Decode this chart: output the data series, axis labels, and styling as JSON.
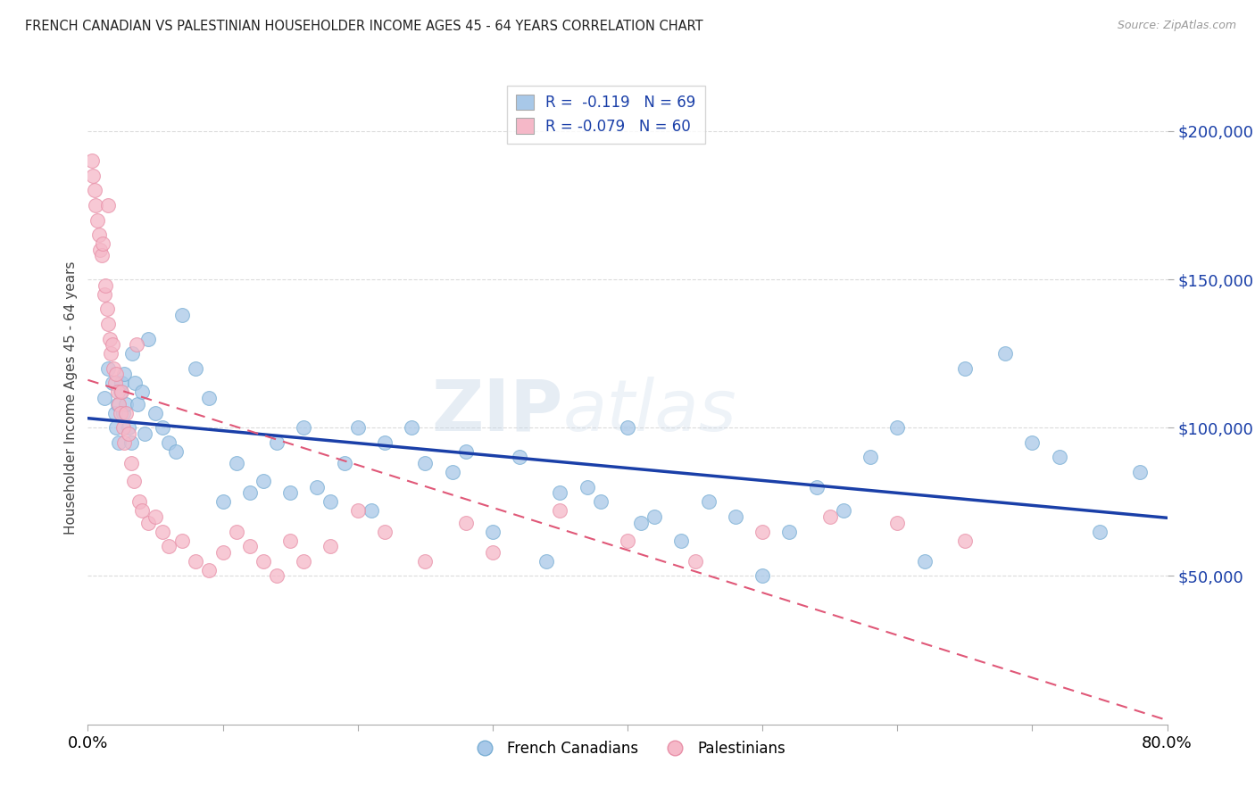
{
  "title": "FRENCH CANADIAN VS PALESTINIAN HOUSEHOLDER INCOME AGES 45 - 64 YEARS CORRELATION CHART",
  "source": "Source: ZipAtlas.com",
  "ylabel": "Householder Income Ages 45 - 64 years",
  "y_tick_labels": [
    "$50,000",
    "$100,000",
    "$150,000",
    "$200,000"
  ],
  "y_tick_values": [
    50000,
    100000,
    150000,
    200000
  ],
  "legend_label1": "French Canadians",
  "legend_label2": "Palestinians",
  "R1": -0.119,
  "N1": 69,
  "R2": -0.079,
  "N2": 60,
  "blue_color": "#a8c8e8",
  "blue_edge_color": "#7aafd4",
  "blue_line_color": "#1a3fa8",
  "pink_color": "#f5b8c8",
  "pink_edge_color": "#e890a8",
  "pink_line_color": "#e05878",
  "background_color": "#ffffff",
  "grid_color": "#d8d8d8",
  "xmin": 0.0,
  "xmax": 80.0,
  "ymin": 0,
  "ymax": 220000,
  "french_canadian_x": [
    1.2,
    1.5,
    1.8,
    2.0,
    2.1,
    2.2,
    2.3,
    2.4,
    2.5,
    2.6,
    2.7,
    2.8,
    3.0,
    3.2,
    3.3,
    3.5,
    3.7,
    4.0,
    4.2,
    4.5,
    5.0,
    5.5,
    6.0,
    6.5,
    7.0,
    8.0,
    9.0,
    10.0,
    11.0,
    12.0,
    13.0,
    14.0,
    15.0,
    16.0,
    17.0,
    18.0,
    19.0,
    20.0,
    21.0,
    22.0,
    24.0,
    25.0,
    27.0,
    28.0,
    30.0,
    32.0,
    34.0,
    35.0,
    37.0,
    38.0,
    40.0,
    41.0,
    42.0,
    44.0,
    46.0,
    48.0,
    50.0,
    52.0,
    54.0,
    56.0,
    58.0,
    60.0,
    62.0,
    65.0,
    68.0,
    70.0,
    72.0,
    75.0,
    78.0
  ],
  "french_canadian_y": [
    110000,
    120000,
    115000,
    105000,
    100000,
    108000,
    95000,
    112000,
    115000,
    105000,
    118000,
    108000,
    100000,
    95000,
    125000,
    115000,
    108000,
    112000,
    98000,
    130000,
    105000,
    100000,
    95000,
    92000,
    138000,
    120000,
    110000,
    75000,
    88000,
    78000,
    82000,
    95000,
    78000,
    100000,
    80000,
    75000,
    88000,
    100000,
    72000,
    95000,
    100000,
    88000,
    85000,
    92000,
    65000,
    90000,
    55000,
    78000,
    80000,
    75000,
    100000,
    68000,
    70000,
    62000,
    75000,
    70000,
    50000,
    65000,
    80000,
    72000,
    90000,
    100000,
    55000,
    120000,
    125000,
    95000,
    90000,
    65000,
    85000
  ],
  "palestinian_x": [
    0.3,
    0.4,
    0.5,
    0.6,
    0.7,
    0.8,
    0.9,
    1.0,
    1.1,
    1.2,
    1.3,
    1.4,
    1.5,
    1.5,
    1.6,
    1.7,
    1.8,
    1.9,
    2.0,
    2.1,
    2.2,
    2.3,
    2.4,
    2.5,
    2.6,
    2.7,
    2.8,
    3.0,
    3.2,
    3.4,
    3.6,
    3.8,
    4.0,
    4.5,
    5.0,
    5.5,
    6.0,
    7.0,
    8.0,
    9.0,
    10.0,
    11.0,
    12.0,
    13.0,
    14.0,
    15.0,
    16.0,
    18.0,
    20.0,
    22.0,
    25.0,
    28.0,
    30.0,
    35.0,
    40.0,
    45.0,
    50.0,
    55.0,
    60.0,
    65.0
  ],
  "palestinian_y": [
    190000,
    185000,
    180000,
    175000,
    170000,
    165000,
    160000,
    158000,
    162000,
    145000,
    148000,
    140000,
    135000,
    175000,
    130000,
    125000,
    128000,
    120000,
    115000,
    118000,
    112000,
    108000,
    105000,
    112000,
    100000,
    95000,
    105000,
    98000,
    88000,
    82000,
    128000,
    75000,
    72000,
    68000,
    70000,
    65000,
    60000,
    62000,
    55000,
    52000,
    58000,
    65000,
    60000,
    55000,
    50000,
    62000,
    55000,
    60000,
    72000,
    65000,
    55000,
    68000,
    58000,
    72000,
    62000,
    55000,
    65000,
    70000,
    68000,
    62000
  ]
}
